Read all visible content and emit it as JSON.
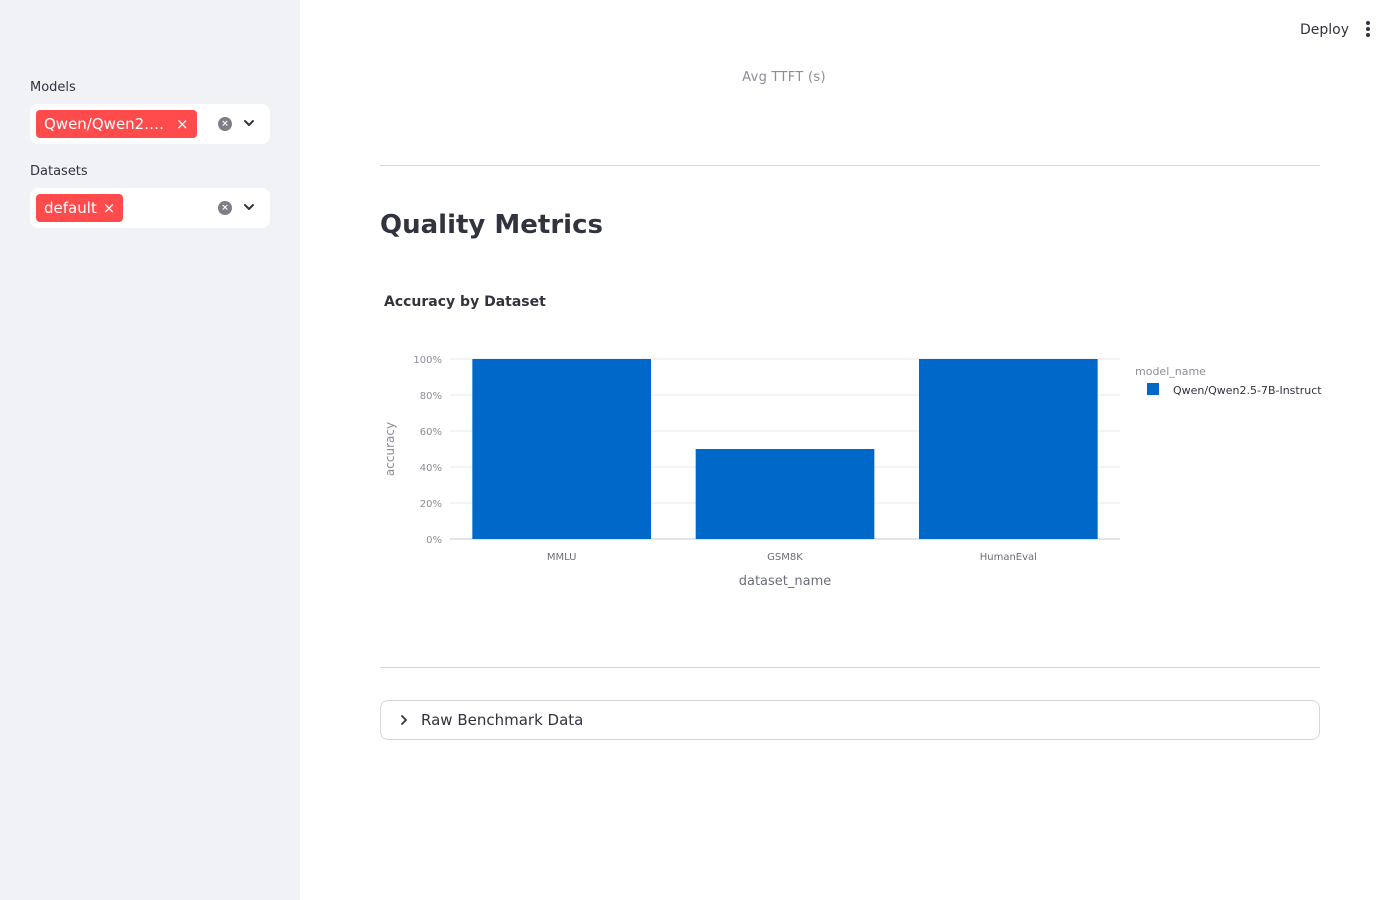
{
  "sidebar": {
    "models": {
      "label": "Models",
      "selected": [
        "Qwen/Qwen2.5-…"
      ]
    },
    "datasets": {
      "label": "Datasets",
      "selected": [
        "default"
      ]
    },
    "chip_remove": "×",
    "clear_glyph": "×"
  },
  "header": {
    "deploy_label": "Deploy",
    "menu_icon": "vertical-ellipsis-icon"
  },
  "main": {
    "previous_chart_xlabel": "Avg TTFT (s)",
    "section_title": "Quality Metrics",
    "expander_label": "Raw Benchmark Data"
  },
  "colors": {
    "accent": "#ff4b4b",
    "bar": "#0068c9",
    "sidebar_bg": "#f0f2f6"
  },
  "chart_data": {
    "type": "bar",
    "title": "Accuracy by Dataset",
    "xlabel": "dataset_name",
    "ylabel": "accuracy",
    "categories": [
      "MMLU",
      "GSM8K",
      "HumanEval"
    ],
    "series": [
      {
        "name": "Qwen/Qwen2.5-7B-Instruct",
        "values": [
          1.0,
          0.5,
          1.0
        ],
        "color": "#0068c9"
      }
    ],
    "ylim": [
      0,
      1
    ],
    "yticks": [
      0,
      0.2,
      0.4,
      0.6,
      0.8,
      1.0
    ],
    "ytick_labels": [
      "0%",
      "20%",
      "40%",
      "60%",
      "80%",
      "100%"
    ],
    "legend_title": "model_name",
    "legend_position": "right",
    "grid": true
  }
}
